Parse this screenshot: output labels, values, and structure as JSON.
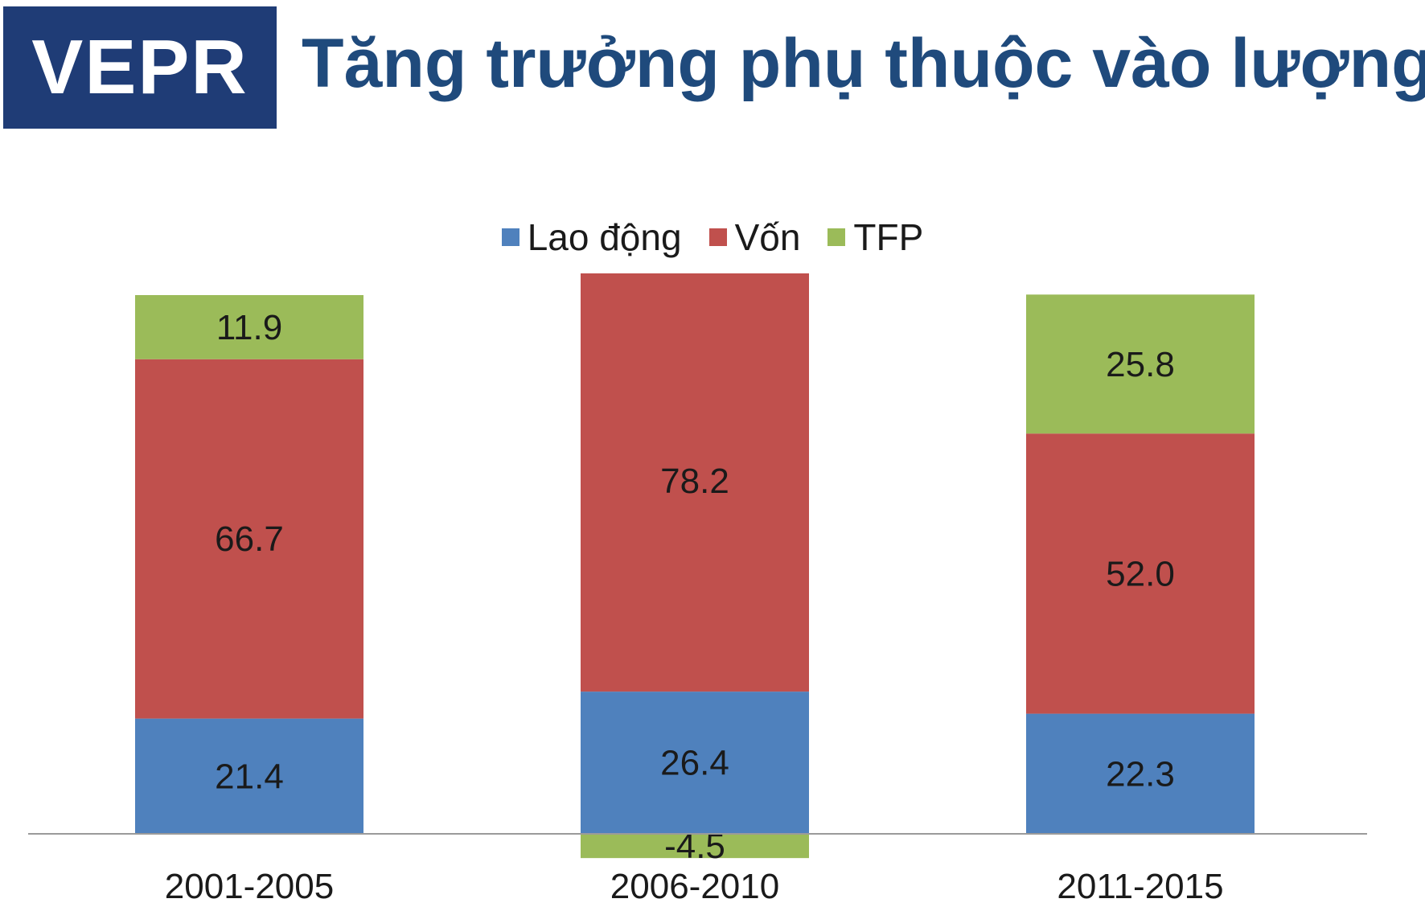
{
  "header": {
    "logo_text": "VEPR",
    "title": "Tăng trưởng phụ thuộc vào lượng"
  },
  "colors": {
    "logo_bg": "#1f3c76",
    "title": "#1f4a7c",
    "lao_dong": "#4f81bd",
    "von": "#c0504d",
    "tfp": "#9bbb59"
  },
  "chart_data": {
    "type": "bar",
    "stacked": true,
    "categories": [
      "2001-2005",
      "2006-2010",
      "2011-2015"
    ],
    "series": [
      {
        "name": "Lao động",
        "values": [
          21.4,
          26.4,
          22.3
        ],
        "color": "#4f81bd"
      },
      {
        "name": "Vốn",
        "values": [
          66.7,
          78.2,
          52.0
        ],
        "color": "#c0504d"
      },
      {
        "name": "TFP",
        "values": [
          11.9,
          -4.5,
          25.8
        ],
        "color": "#9bbb59"
      }
    ],
    "data_labels": [
      [
        "21.4",
        "26.4",
        "22.3"
      ],
      [
        "66.7",
        "78.2",
        "52.0"
      ],
      [
        "11.9",
        "-4.5",
        "25.8"
      ]
    ],
    "legend_position": "top",
    "grid": false,
    "ylim": [
      -4.5,
      100
    ]
  }
}
